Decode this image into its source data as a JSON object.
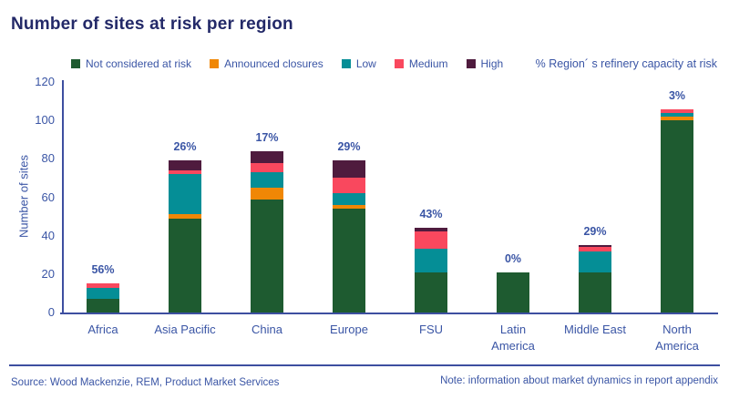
{
  "title": "Number of sites at risk per region",
  "capacity_note": "% Region´ s refinery capacity at risk",
  "legend": {
    "items": [
      {
        "label": "Not considered at risk",
        "color": "#1E5B30"
      },
      {
        "label": "Announced closures",
        "color": "#F08705"
      },
      {
        "label": "Low",
        "color": "#058E96"
      },
      {
        "label": "Medium",
        "color": "#F9485E"
      },
      {
        "label": "High",
        "color": "#4F1B3E"
      }
    ]
  },
  "chart_data": {
    "type": "bar",
    "stacked": true,
    "title": "Number of sites at risk per region",
    "ylabel": "Number of sites",
    "xlabel": "",
    "ylim": [
      0,
      120
    ],
    "yticks": [
      0,
      20,
      40,
      60,
      80,
      100,
      120
    ],
    "grid": false,
    "legend_position": "top",
    "categories": [
      "Africa",
      "Asia Pacific",
      "China",
      "Europe",
      "FSU",
      "Latin America",
      "Middle East",
      "North America"
    ],
    "series": [
      {
        "name": "Not considered at risk",
        "color": "#1E5B30",
        "values": [
          7,
          49,
          59,
          54,
          21,
          21,
          21,
          100
        ]
      },
      {
        "name": "Announced closures",
        "color": "#F08705",
        "values": [
          0,
          2,
          6,
          2,
          0,
          0,
          0,
          2
        ]
      },
      {
        "name": "Low",
        "color": "#058E96",
        "values": [
          6,
          21,
          8,
          6,
          12,
          0,
          11,
          2
        ]
      },
      {
        "name": "Medium",
        "color": "#F9485E",
        "values": [
          2,
          2,
          5,
          8,
          9,
          0,
          2,
          2
        ]
      },
      {
        "name": "High",
        "color": "#4F1B3E",
        "values": [
          0,
          5,
          6,
          9,
          2,
          0,
          1,
          0
        ]
      }
    ],
    "totals": [
      15,
      79,
      84,
      79,
      44,
      21,
      35,
      106
    ],
    "bar_labels": [
      "56%",
      "26%",
      "17%",
      "29%",
      "43%",
      "0%",
      "29%",
      "3%"
    ]
  },
  "footer": {
    "source": "Source: Wood Mackenzie, REM, Product Market Services",
    "note": "Note: information about market dynamics in report appendix"
  },
  "colors": {
    "title_text": "#232968",
    "axis_text": "#3A55A5",
    "axis_line": "#3D4FA0",
    "background": "#FFFFFF"
  }
}
